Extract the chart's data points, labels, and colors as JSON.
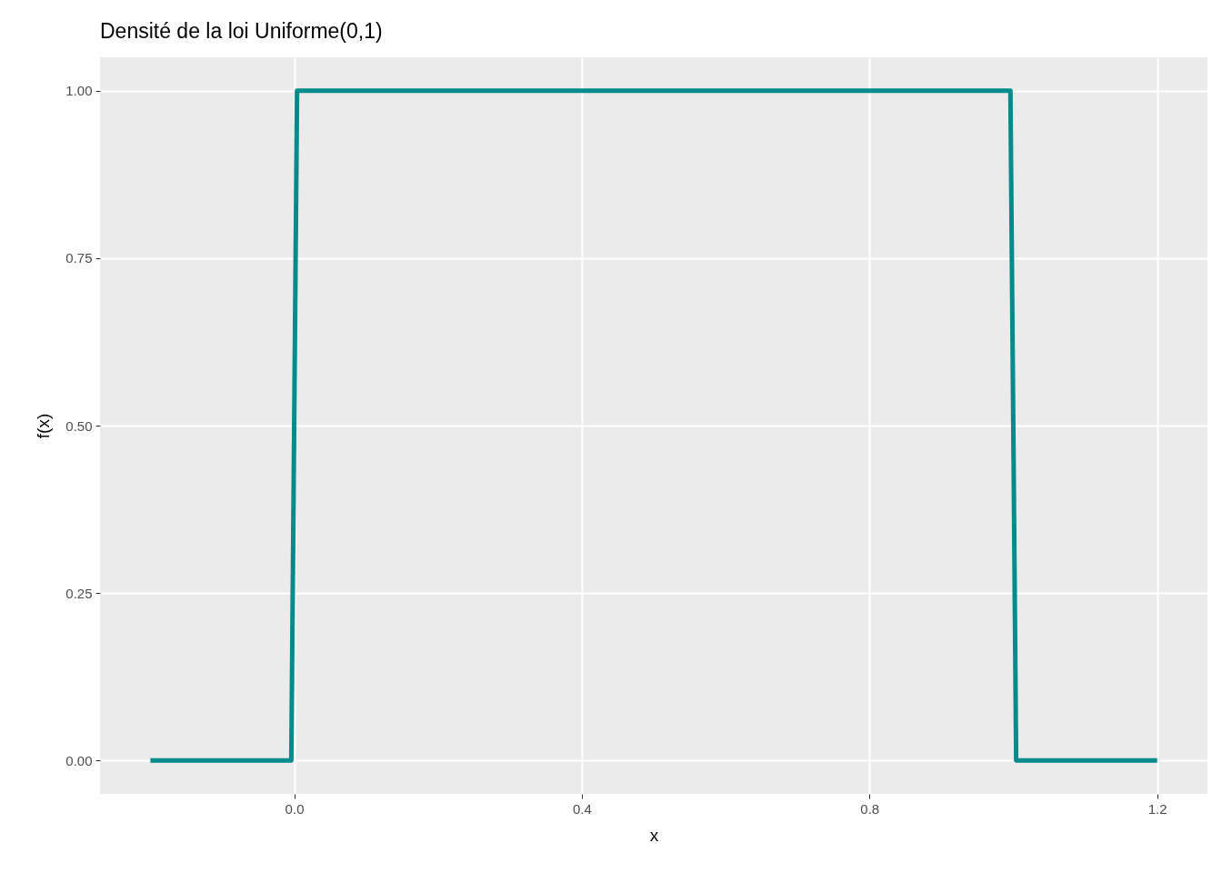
{
  "chart_data": {
    "type": "line",
    "title": "Densité de la loi Uniforme(0,1)",
    "xlabel": "x",
    "ylabel": "f(x)",
    "x": [
      -0.2,
      -0.004,
      0.004,
      0.996,
      1.004,
      1.2
    ],
    "values": [
      0,
      0,
      1,
      1,
      0,
      0
    ],
    "color": "#008b8b",
    "xlim": [
      -0.27,
      1.27
    ],
    "ylim": [
      -0.05,
      1.05
    ],
    "xticks": [
      {
        "value": 0,
        "label": "0.0"
      },
      {
        "value": 0.4,
        "label": "0.4"
      },
      {
        "value": 0.8,
        "label": "0.8"
      },
      {
        "value": 1.2,
        "label": "1.2"
      }
    ],
    "yticks": [
      {
        "value": 0,
        "label": "0.00"
      },
      {
        "value": 0.25,
        "label": "0.25"
      },
      {
        "value": 0.5,
        "label": "0.50"
      },
      {
        "value": 0.75,
        "label": "0.75"
      },
      {
        "value": 1,
        "label": "1.00"
      }
    ],
    "grid": true
  }
}
